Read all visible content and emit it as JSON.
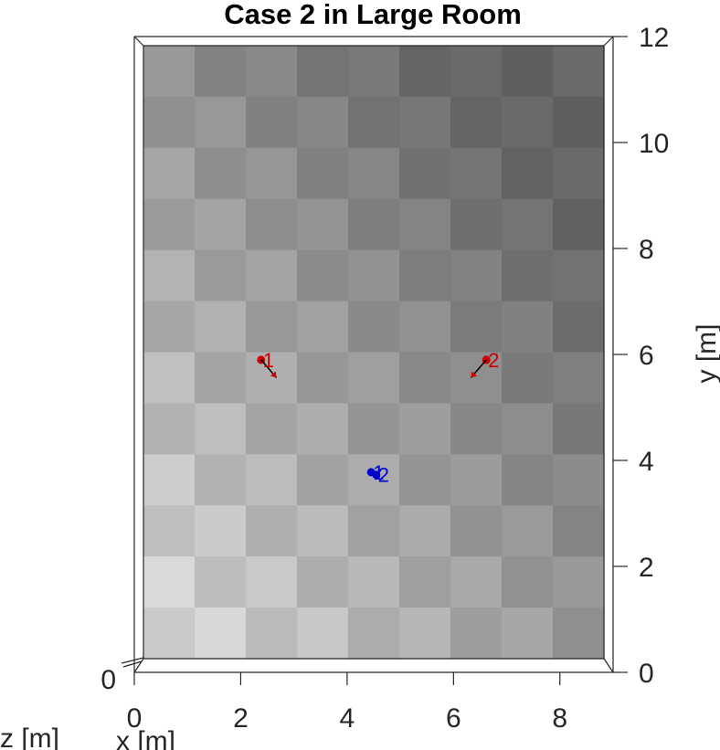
{
  "chart_data": {
    "type": "scatter",
    "title": "Case 2 in Large Room",
    "xlabel": "x [m]",
    "ylabel": "y [m]",
    "zlabel": "z [m]",
    "xlim": [
      0,
      9
    ],
    "ylim": [
      0,
      12
    ],
    "xticks": [
      "0",
      "2",
      "4",
      "6",
      "8"
    ],
    "yticks": [
      "0",
      "2",
      "4",
      "6",
      "8",
      "10",
      "12"
    ],
    "zticks": [
      "0"
    ],
    "floor": {
      "pattern": "checkerboard",
      "cols": 9,
      "rows": 12,
      "light_color": "#e0e0e0",
      "dark_color": "#6a6a6a"
    },
    "series": [
      {
        "color": "#cc0000",
        "points": [
          {
            "label": "1",
            "x": 2.3,
            "y": 5.85,
            "dx": 0.3,
            "dy": -0.35
          },
          {
            "label": "2",
            "x": 6.7,
            "y": 5.85,
            "dx": -0.3,
            "dy": -0.35
          }
        ]
      },
      {
        "color": "#0000cc",
        "points": [
          {
            "label": "1",
            "x": 4.45,
            "y": 3.65,
            "dx": 0.0,
            "dy": 0.0
          },
          {
            "label": "2",
            "x": 4.55,
            "y": 3.6,
            "dx": 0.0,
            "dy": 0.0
          }
        ]
      }
    ]
  }
}
